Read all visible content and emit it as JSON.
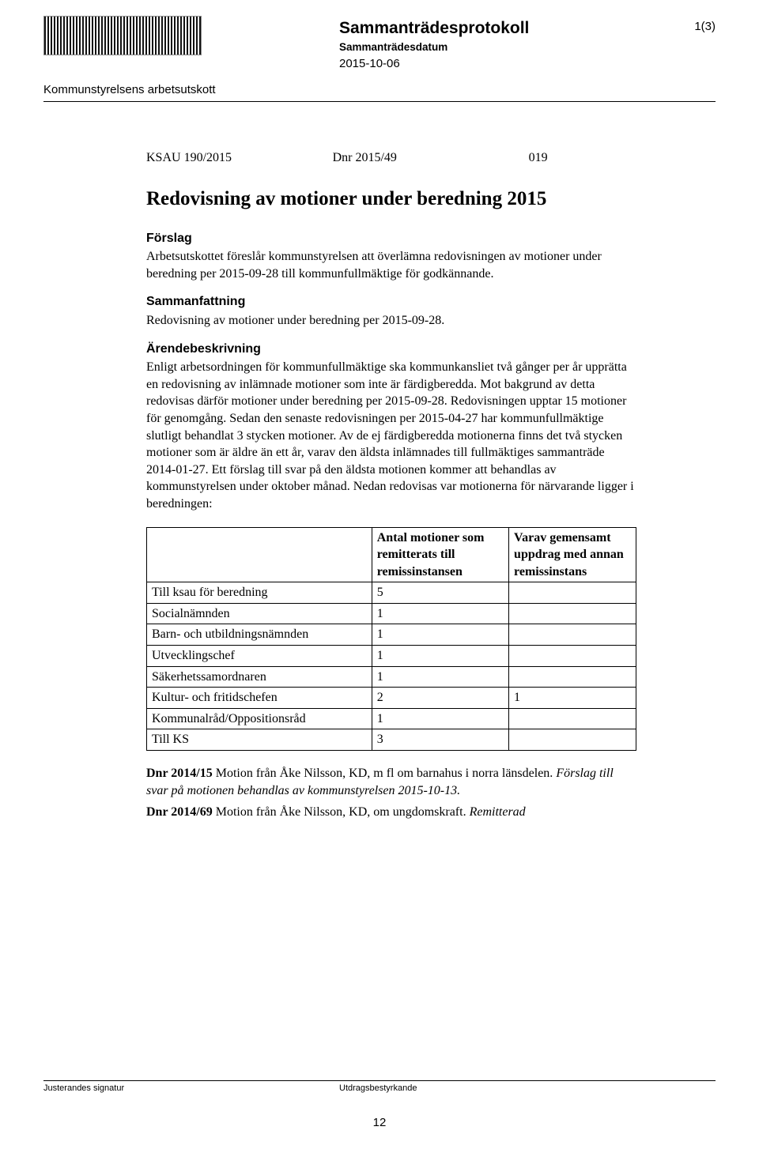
{
  "colors": {
    "text": "#000000",
    "background": "#ffffff",
    "border": "#000000",
    "logo_stripe_dark": "#111111",
    "logo_stripe_light": "#ffffff"
  },
  "typography": {
    "body_family": "Times New Roman",
    "ui_family": "Arial",
    "body_size_pt": 12,
    "title_size_pt": 19,
    "doc_title_size_pt": 16
  },
  "header": {
    "doc_title": "Sammanträdesprotokoll",
    "meeting_date_label": "Sammanträdesdatum",
    "meeting_date": "2015-10-06",
    "committee": "Kommunstyrelsens arbetsutskott",
    "page_indicator": "1(3)"
  },
  "case": {
    "id": "KSAU 190/2015",
    "dnr": "Dnr 2015/49",
    "num": "019"
  },
  "title": "Redovisning av motioner under beredning 2015",
  "sections": {
    "proposal_heading": "Förslag",
    "proposal_text": "Arbetsutskottet föreslår kommunstyrelsen att överlämna redovisningen av motioner under beredning per 2015-09-28 till kommunfullmäktige för godkännande.",
    "summary_heading": "Sammanfattning",
    "summary_text": "Redovisning av motioner under beredning per 2015-09-28.",
    "description_heading": "Ärendebeskrivning",
    "description_text": "Enligt arbetsordningen för kommunfullmäktige ska kommunkansliet två gånger per år upprätta en redovisning av inlämnade motioner som inte är färdigberedda. Mot bakgrund av detta redovisas därför motioner under beredning per 2015-09-28. Redovisningen upptar 15 motioner för genomgång. Sedan den senaste redovisningen per 2015-04-27 har kommunfullmäktige slutligt behandlat 3 stycken motioner. Av de ej färdigberedda motionerna finns det två stycken motioner som är äldre än ett år, varav den äldsta inlämnades till fullmäktiges sammanträde 2014-01-27. Ett förslag till svar på den äldsta motionen kommer att behandlas av kommunstyrelsen under oktober månad. Nedan redovisas var motionerna för närvarande ligger i beredningen:"
  },
  "table": {
    "col_widths_pct": [
      46,
      28,
      26
    ],
    "columns": [
      "",
      "Antal motioner som remitterats till remissinstansen",
      "Varav gemensamt uppdrag med annan remissinstans"
    ],
    "rows": [
      [
        "Till ksau för beredning",
        "5",
        ""
      ],
      [
        "Socialnämnden",
        "1",
        ""
      ],
      [
        "Barn- och utbildningsnämnden",
        "1",
        ""
      ],
      [
        "Utvecklingschef",
        "1",
        ""
      ],
      [
        "Säkerhetssamordnaren",
        "1",
        ""
      ],
      [
        "Kultur- och fritidschefen",
        "2",
        "1"
      ],
      [
        "Kommunalråd/Oppositionsråd",
        "1",
        ""
      ],
      [
        "Till KS",
        "3",
        ""
      ]
    ]
  },
  "refs": {
    "r1_dnr": "Dnr 2014/15",
    "r1_text": " Motion från Åke Nilsson, KD, m fl om barnahus i norra länsdelen. ",
    "r1_italic": "Förslag till svar på motionen behandlas av kommunstyrelsen 2015-10-13.",
    "r2_dnr": "Dnr 2014/69",
    "r2_text": " Motion från Åke Nilsson, KD, om ungdomskraft. ",
    "r2_italic": "Remitterad"
  },
  "footer": {
    "left": "Justerandes signatur",
    "right": "Utdragsbestyrkande",
    "page_number": "12"
  }
}
